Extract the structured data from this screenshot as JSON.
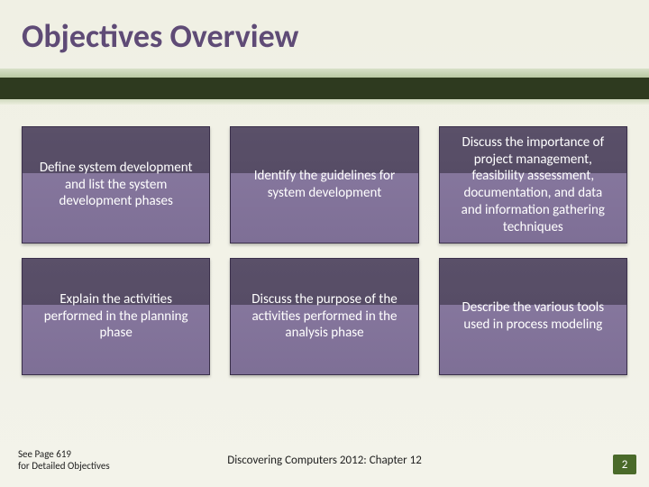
{
  "title": "Objectives Overview",
  "colors": {
    "title_color": "#5f4b76",
    "background_top": "#f0f0e4",
    "band_light": "#b9c9a3",
    "band_dark": "#2e3a1f",
    "card_gradient_top": "#8a7ba1",
    "card_gradient_bottom": "#7e6f96",
    "card_border": "#3a2f4a",
    "card_text": "#ffffff",
    "pagenum_bg": "#4a6a2a"
  },
  "grid": {
    "rows": 2,
    "cols": 3,
    "card_fontsize": 15,
    "cards": [
      "Define system development and list the system development phases",
      "Identify the guidelines for system development",
      "Discuss the importance of project management, feasibility assessment, documentation, and data and information gathering techniques",
      "Explain the activities performed in the planning phase",
      "Discuss the purpose of the activities performed in the analysis phase",
      "Describe the various tools used in process modeling"
    ]
  },
  "footnote": {
    "line1": "See Page 619",
    "line2": "for Detailed Objectives"
  },
  "footer_center": "Discovering Computers 2012: Chapter 12",
  "page_number": "2"
}
